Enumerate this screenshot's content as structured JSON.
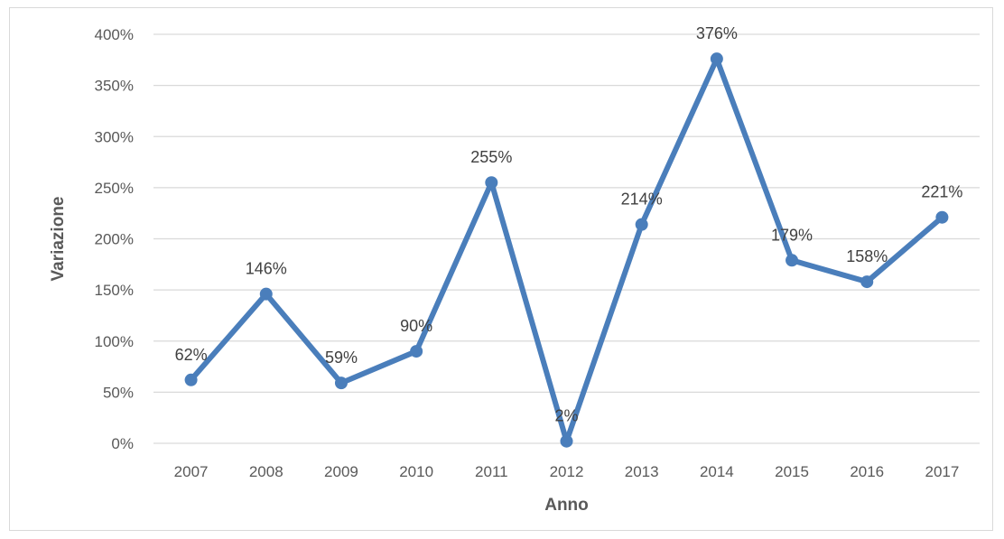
{
  "chart_data": {
    "type": "line",
    "title": "",
    "xlabel": "Anno",
    "ylabel": "Variazione",
    "categories": [
      "2007",
      "2008",
      "2009",
      "2010",
      "2011",
      "2012",
      "2013",
      "2014",
      "2015",
      "2016",
      "2017"
    ],
    "series": [
      {
        "values": [
          62,
          146,
          59,
          90,
          255,
          2,
          214,
          376,
          179,
          158,
          221
        ],
        "data_labels": [
          "62%",
          "146%",
          "59%",
          "90%",
          "255%",
          "2%",
          "214%",
          "376%",
          "179%",
          "158%",
          "221%"
        ],
        "color": "#4a7ebb"
      }
    ],
    "ylim": [
      0,
      400
    ],
    "y_ticks": [
      0,
      50,
      100,
      150,
      200,
      250,
      300,
      350,
      400
    ],
    "y_tick_labels": [
      "0%",
      "50%",
      "100%",
      "150%",
      "200%",
      "250%",
      "300%",
      "350%",
      "400%"
    ],
    "grid": true,
    "gridline_color": "#d9d9d9",
    "legend": "none"
  }
}
